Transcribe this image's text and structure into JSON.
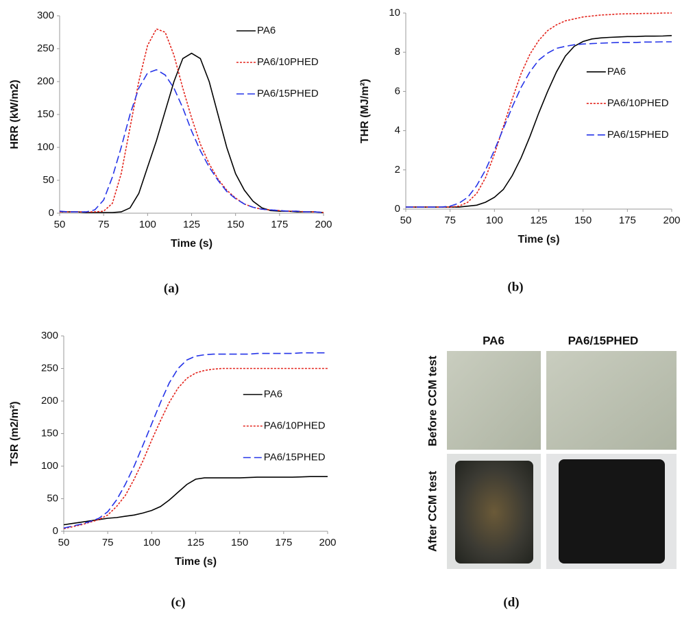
{
  "chart_data": [
    {
      "type": "line",
      "panel": "(a)",
      "xlabel": "Time (s)",
      "ylabel": "HRR (kW/m2)",
      "legend": "upper right",
      "x": [
        50,
        55,
        60,
        65,
        70,
        75,
        80,
        85,
        90,
        95,
        100,
        105,
        110,
        115,
        120,
        125,
        130,
        135,
        140,
        145,
        150,
        155,
        160,
        165,
        170,
        175,
        180,
        185,
        190,
        195,
        200
      ],
      "xlim": [
        50,
        200
      ],
      "xticks": [
        50,
        75,
        100,
        125,
        150,
        175,
        200
      ],
      "ylim": [
        0,
        300
      ],
      "yticks": [
        0,
        50,
        100,
        150,
        200,
        250,
        300
      ],
      "series": [
        {
          "name": "PA6",
          "color": "#000000",
          "style": "solid",
          "values": [
            2,
            2,
            2,
            1,
            1,
            1,
            1,
            2,
            8,
            30,
            70,
            110,
            155,
            200,
            235,
            243,
            235,
            200,
            150,
            100,
            60,
            35,
            18,
            8,
            4,
            3,
            3,
            2,
            2,
            2,
            1
          ]
        },
        {
          "name": "PA6/10PHED",
          "color": "#e3231b",
          "style": "dotted",
          "values": [
            2,
            2,
            2,
            2,
            2,
            3,
            15,
            60,
            130,
            200,
            255,
            280,
            275,
            240,
            190,
            145,
            105,
            75,
            52,
            35,
            23,
            14,
            9,
            6,
            5,
            4,
            3,
            3,
            2,
            2,
            1
          ]
        },
        {
          "name": "PA6/15PHED",
          "color": "#2433e8",
          "style": "dashed",
          "values": [
            3,
            2,
            2,
            2,
            5,
            20,
            55,
            100,
            150,
            190,
            213,
            218,
            210,
            190,
            160,
            125,
            95,
            70,
            50,
            33,
            22,
            14,
            9,
            6,
            5,
            4,
            3,
            3,
            2,
            2,
            1
          ]
        }
      ]
    },
    {
      "type": "line",
      "panel": "(b)",
      "xlabel": "Time (s)",
      "ylabel": "THR (MJ/m²)",
      "legend": "center right",
      "x": [
        50,
        55,
        60,
        65,
        70,
        75,
        80,
        85,
        90,
        95,
        100,
        105,
        110,
        115,
        120,
        125,
        130,
        135,
        140,
        145,
        150,
        155,
        160,
        165,
        170,
        175,
        180,
        185,
        190,
        195,
        200
      ],
      "xlim": [
        50,
        200
      ],
      "xticks": [
        50,
        75,
        100,
        125,
        150,
        175,
        200
      ],
      "ylim": [
        0,
        10
      ],
      "yticks": [
        0,
        2,
        4,
        6,
        8,
        10
      ],
      "series": [
        {
          "name": "PA6",
          "color": "#000000",
          "style": "solid",
          "values": [
            0.1,
            0.1,
            0.1,
            0.1,
            0.1,
            0.1,
            0.1,
            0.15,
            0.2,
            0.35,
            0.6,
            1.0,
            1.7,
            2.6,
            3.7,
            4.9,
            6.0,
            7.0,
            7.8,
            8.3,
            8.55,
            8.68,
            8.73,
            8.76,
            8.78,
            8.8,
            8.8,
            8.82,
            8.82,
            8.83,
            8.85
          ]
        },
        {
          "name": "PA6/10PHED",
          "color": "#e3231b",
          "style": "dotted",
          "values": [
            0.1,
            0.1,
            0.1,
            0.1,
            0.1,
            0.1,
            0.15,
            0.35,
            0.8,
            1.6,
            2.8,
            4.2,
            5.6,
            6.9,
            7.9,
            8.6,
            9.1,
            9.4,
            9.6,
            9.7,
            9.8,
            9.85,
            9.9,
            9.92,
            9.95,
            9.96,
            9.97,
            9.98,
            9.98,
            10,
            10
          ]
        },
        {
          "name": "PA6/15PHED",
          "color": "#2433e8",
          "style": "dashed",
          "values": [
            0.1,
            0.1,
            0.1,
            0.1,
            0.1,
            0.15,
            0.3,
            0.6,
            1.2,
            2.0,
            3.0,
            4.1,
            5.2,
            6.2,
            7.0,
            7.6,
            7.95,
            8.2,
            8.3,
            8.38,
            8.42,
            8.44,
            8.46,
            8.48,
            8.5,
            8.5,
            8.5,
            8.52,
            8.52,
            8.53,
            8.53
          ]
        }
      ]
    },
    {
      "type": "line",
      "panel": "(c)",
      "xlabel": "Time (s)",
      "ylabel": "TSR (m2/m²)",
      "legend": "center right",
      "x": [
        50,
        55,
        60,
        65,
        70,
        75,
        80,
        85,
        90,
        95,
        100,
        105,
        110,
        115,
        120,
        125,
        130,
        135,
        140,
        145,
        150,
        155,
        160,
        165,
        170,
        175,
        180,
        185,
        190,
        195,
        200
      ],
      "xlim": [
        50,
        200
      ],
      "xticks": [
        50,
        75,
        100,
        125,
        150,
        175,
        200
      ],
      "ylim": [
        0,
        300
      ],
      "yticks": [
        0,
        50,
        100,
        150,
        200,
        250,
        300
      ],
      "series": [
        {
          "name": "PA6",
          "color": "#000000",
          "style": "solid",
          "values": [
            10,
            12,
            14,
            16,
            18,
            20,
            21,
            23,
            25,
            28,
            32,
            38,
            48,
            60,
            72,
            80,
            82,
            82,
            82,
            82,
            82,
            82.5,
            83,
            83,
            83,
            83,
            83,
            83.5,
            84,
            84,
            84
          ]
        },
        {
          "name": "PA6/10PHED",
          "color": "#e3231b",
          "style": "dotted",
          "values": [
            4,
            7,
            10,
            14,
            18,
            25,
            38,
            55,
            80,
            108,
            140,
            170,
            198,
            220,
            235,
            243,
            247,
            249,
            250,
            250,
            250,
            250,
            250,
            250,
            250,
            250,
            250,
            250,
            250,
            250,
            250
          ]
        },
        {
          "name": "PA6/15PHED",
          "color": "#2433e8",
          "style": "dashed",
          "values": [
            5,
            8,
            11,
            15,
            20,
            30,
            48,
            72,
            100,
            132,
            165,
            198,
            228,
            250,
            263,
            269,
            271,
            272,
            272,
            272,
            272,
            272,
            273,
            273,
            273,
            273,
            273,
            274,
            274,
            274,
            274
          ]
        }
      ]
    }
  ],
  "photos": {
    "panel": "(d)",
    "columns": [
      "PA6",
      "PA6/15PHED"
    ],
    "rows": [
      "Before CCM test",
      "After CCM test"
    ]
  }
}
